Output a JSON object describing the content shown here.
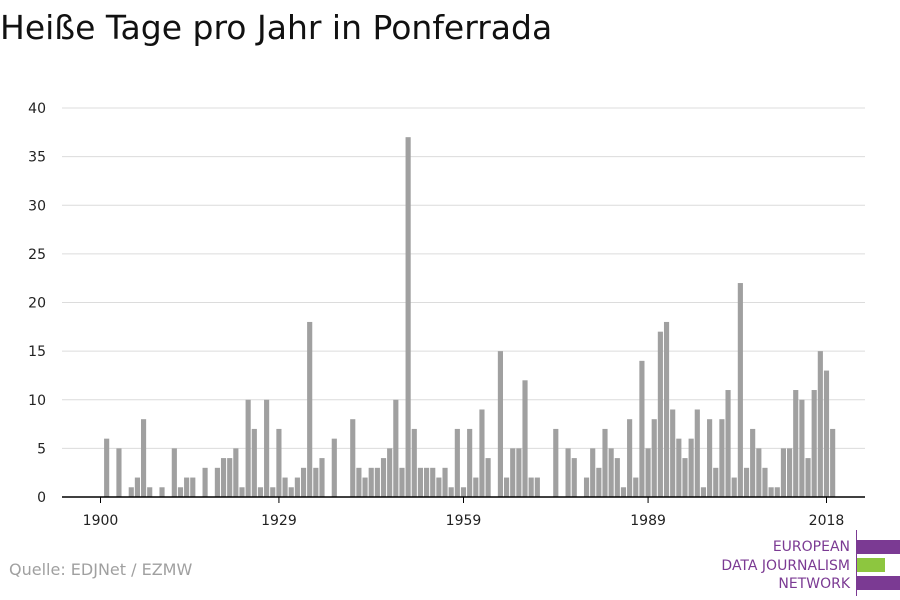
{
  "title": "Heiße Tage pro Jahr in Ponferrada",
  "source": "Quelle: EDJNet / EZMW",
  "logo": {
    "line1": "EUROPEAN",
    "line2": "DATA JOURNALISM",
    "line3": "NETWORK",
    "colors": {
      "purple": "#7b3a93",
      "green": "#8dc63f"
    }
  },
  "colors": {
    "bar": "#a0a0a0",
    "grid": "#dcdcdc",
    "axis": "#000000"
  },
  "chart_data": {
    "type": "bar",
    "title": "Heiße Tage pro Jahr in Ponferrada",
    "xlabel": "",
    "ylabel": "",
    "ylim": [
      0,
      40
    ],
    "yticks": [
      0,
      5,
      10,
      15,
      20,
      25,
      30,
      35,
      40
    ],
    "xticks": [
      1900,
      1929,
      1959,
      1989,
      2018
    ],
    "grid": true,
    "x": [
      1900,
      1901,
      1902,
      1903,
      1904,
      1905,
      1906,
      1907,
      1908,
      1909,
      1910,
      1911,
      1912,
      1913,
      1914,
      1915,
      1916,
      1917,
      1918,
      1919,
      1920,
      1921,
      1922,
      1923,
      1924,
      1925,
      1926,
      1927,
      1928,
      1929,
      1930,
      1931,
      1932,
      1933,
      1934,
      1935,
      1936,
      1937,
      1938,
      1939,
      1940,
      1941,
      1942,
      1943,
      1944,
      1945,
      1946,
      1947,
      1948,
      1949,
      1950,
      1951,
      1952,
      1953,
      1954,
      1955,
      1956,
      1957,
      1958,
      1959,
      1960,
      1961,
      1962,
      1963,
      1964,
      1965,
      1966,
      1967,
      1968,
      1969,
      1970,
      1971,
      1972,
      1973,
      1974,
      1975,
      1976,
      1977,
      1978,
      1979,
      1980,
      1981,
      1982,
      1983,
      1984,
      1985,
      1986,
      1987,
      1988,
      1989,
      1990,
      1991,
      1992,
      1993,
      1994,
      1995,
      1996,
      1997,
      1998,
      1999,
      2000,
      2001,
      2002,
      2003,
      2004,
      2005,
      2006,
      2007,
      2008,
      2009,
      2010,
      2011,
      2012,
      2013,
      2014,
      2015,
      2016,
      2017,
      2018,
      2019
    ],
    "values": [
      0,
      6,
      0,
      5,
      0,
      1,
      2,
      8,
      1,
      0,
      1,
      0,
      5,
      1,
      2,
      2,
      0,
      3,
      0,
      3,
      4,
      4,
      5,
      1,
      10,
      7,
      1,
      10,
      1,
      7,
      2,
      1,
      2,
      3,
      18,
      3,
      4,
      0,
      6,
      0,
      0,
      8,
      3,
      2,
      3,
      3,
      4,
      5,
      10,
      3,
      37,
      7,
      3,
      3,
      3,
      2,
      3,
      1,
      7,
      1,
      7,
      2,
      9,
      4,
      0,
      15,
      2,
      5,
      5,
      12,
      2,
      2,
      0,
      0,
      7,
      0,
      5,
      4,
      0,
      2,
      5,
      3,
      7,
      5,
      4,
      1,
      8,
      2,
      14,
      5,
      8,
      17,
      18,
      9,
      6,
      4,
      6,
      9,
      1,
      8,
      3,
      8,
      11,
      2,
      22,
      3,
      7,
      5,
      3,
      1,
      1,
      5,
      5,
      11,
      10,
      4,
      11,
      15,
      13,
      7
    ]
  }
}
